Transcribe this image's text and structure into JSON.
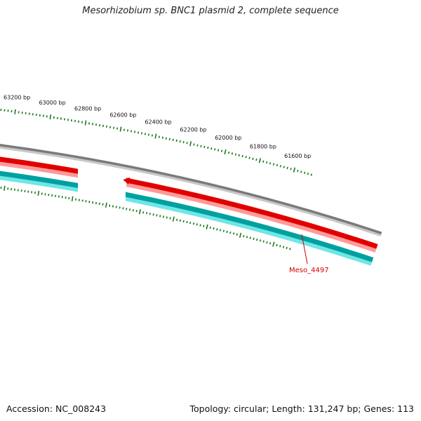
{
  "title": "Mesorhizobium sp. BNC1 plasmid 2, complete sequence",
  "footer": {
    "accession": "Accession: NC_008243",
    "summary": "Topology: circular; Length: 131,247 bp; Genes: 113"
  },
  "colors": {
    "backbone": "#7a7a7a",
    "forward_gene": "#e00000",
    "reverse_gene": "#00a8a8",
    "ticks": "#1a7a1a",
    "gene_label": "#d40000"
  },
  "ticks": [
    {
      "label": "61600 bp",
      "bp": 61600
    },
    {
      "label": "61800 bp",
      "bp": 61800
    },
    {
      "label": "62000 bp",
      "bp": 62000
    },
    {
      "label": "62200 bp",
      "bp": 62200
    },
    {
      "label": "62400 bp",
      "bp": 62400
    },
    {
      "label": "62600 bp",
      "bp": 62600
    },
    {
      "label": "62800 bp",
      "bp": 62800
    },
    {
      "label": "63000 bp",
      "bp": 63000
    },
    {
      "label": "63200 bp",
      "bp": 63200
    }
  ],
  "genes": [
    {
      "label": "Meso_4497",
      "strand": "reverse"
    }
  ]
}
